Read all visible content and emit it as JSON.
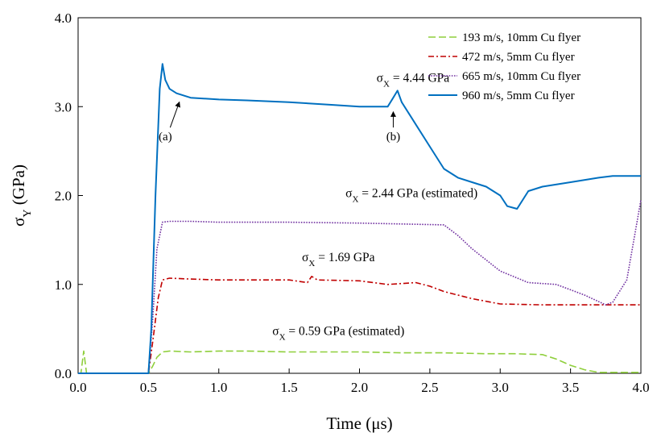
{
  "chart_data": {
    "type": "line",
    "xlabel": "Time (μs)",
    "ylabel": {
      "main": "σ",
      "sub": "Y",
      "unit": " (GPa)"
    },
    "xlim": [
      0,
      4
    ],
    "ylim": [
      0,
      4
    ],
    "xticks": [
      "0.0",
      "0.5",
      "1.0",
      "1.5",
      "2.0",
      "2.5",
      "3.0",
      "3.5",
      "4.0"
    ],
    "yticks": [
      "0.0",
      "1.0",
      "2.0",
      "3.0",
      "4.0"
    ],
    "grid": false,
    "legend_position": "top-right",
    "series": [
      {
        "name": "193 m/s, 10mm Cu flyer",
        "color": "#8fcf3c",
        "dash": "dashed",
        "x": [
          0.0,
          0.02,
          0.04,
          0.06,
          0.1,
          0.3,
          0.5,
          0.53,
          0.56,
          0.6,
          0.65,
          0.8,
          1.0,
          1.2,
          1.5,
          1.8,
          2.0,
          2.3,
          2.6,
          2.9,
          3.1,
          3.3,
          3.4,
          3.5,
          3.6,
          3.7,
          3.8,
          4.0
        ],
        "y": [
          0.0,
          0.0,
          0.25,
          0.0,
          0.0,
          0.0,
          0.0,
          0.08,
          0.18,
          0.24,
          0.25,
          0.24,
          0.25,
          0.25,
          0.24,
          0.24,
          0.24,
          0.23,
          0.23,
          0.22,
          0.22,
          0.21,
          0.16,
          0.09,
          0.04,
          0.01,
          0.01,
          0.01
        ]
      },
      {
        "name": "472 m/s, 5mm Cu flyer",
        "color": "#c00000",
        "dash": "dashdot",
        "x": [
          0.0,
          0.5,
          0.53,
          0.57,
          0.6,
          0.65,
          0.8,
          1.0,
          1.2,
          1.5,
          1.63,
          1.66,
          1.7,
          2.0,
          2.2,
          2.4,
          2.5,
          2.6,
          2.8,
          3.0,
          3.3,
          3.6,
          3.8,
          4.0
        ],
        "y": [
          0.0,
          0.0,
          0.35,
          0.85,
          1.05,
          1.07,
          1.06,
          1.05,
          1.05,
          1.05,
          1.02,
          1.09,
          1.05,
          1.04,
          1.0,
          1.02,
          0.98,
          0.92,
          0.84,
          0.78,
          0.77,
          0.77,
          0.77,
          0.77
        ]
      },
      {
        "name": "665 m/s, 10mm Cu flyer",
        "color": "#7030a0",
        "dash": "dotted",
        "x": [
          0.0,
          0.5,
          0.53,
          0.56,
          0.6,
          0.65,
          0.8,
          1.0,
          1.5,
          2.0,
          2.3,
          2.6,
          2.7,
          2.8,
          3.0,
          3.2,
          3.4,
          3.6,
          3.75,
          3.8,
          3.9,
          4.0
        ],
        "y": [
          0.0,
          0.0,
          0.6,
          1.4,
          1.7,
          1.71,
          1.71,
          1.7,
          1.7,
          1.69,
          1.68,
          1.67,
          1.55,
          1.4,
          1.15,
          1.02,
          1.0,
          0.88,
          0.77,
          0.8,
          1.05,
          1.95
        ]
      },
      {
        "name": "960 m/s, 5mm Cu flyer",
        "color": "#0070c0",
        "dash": "solid",
        "x": [
          0.0,
          0.5,
          0.52,
          0.55,
          0.58,
          0.6,
          0.62,
          0.65,
          0.7,
          0.8,
          1.0,
          1.2,
          1.5,
          1.8,
          2.0,
          2.2,
          2.24,
          2.27,
          2.3,
          2.4,
          2.5,
          2.6,
          2.7,
          2.8,
          2.9,
          3.0,
          3.05,
          3.12,
          3.2,
          3.3,
          3.5,
          3.7,
          3.8,
          3.9,
          4.0
        ],
        "y": [
          0.0,
          0.0,
          0.5,
          2.0,
          3.2,
          3.48,
          3.3,
          3.2,
          3.15,
          3.1,
          3.08,
          3.07,
          3.05,
          3.02,
          3.0,
          3.0,
          3.1,
          3.18,
          3.05,
          2.8,
          2.55,
          2.3,
          2.2,
          2.15,
          2.1,
          2.0,
          1.88,
          1.85,
          2.05,
          2.1,
          2.15,
          2.2,
          2.22,
          2.22,
          2.22
        ]
      }
    ],
    "annotations": [
      {
        "main": "σ",
        "sub": "X",
        "rest": " = 4.44 GPa",
        "x": 2.38,
        "y": 3.28,
        "color": "#0070c0"
      },
      {
        "main": "σ",
        "sub": "X",
        "rest": " = 2.44 GPa (estimated)",
        "x": 2.37,
        "y": 1.98,
        "color": "#7030a0"
      },
      {
        "main": "σ",
        "sub": "X",
        "rest": " = 1.69 GPa",
        "x": 1.85,
        "y": 1.26,
        "color": "#c00000"
      },
      {
        "main": "σ",
        "sub": "X",
        "rest": " = 0.59 GPa (estimated)",
        "x": 1.85,
        "y": 0.43,
        "color": "#8fcf3c"
      }
    ],
    "points": [
      {
        "label": "(a)",
        "tip_x": 0.72,
        "tip_y": 3.08,
        "label_x": 0.62,
        "label_y": 2.62
      },
      {
        "label": "(b)",
        "tip_x": 2.24,
        "tip_y": 2.97,
        "label_x": 2.24,
        "label_y": 2.62
      }
    ]
  }
}
